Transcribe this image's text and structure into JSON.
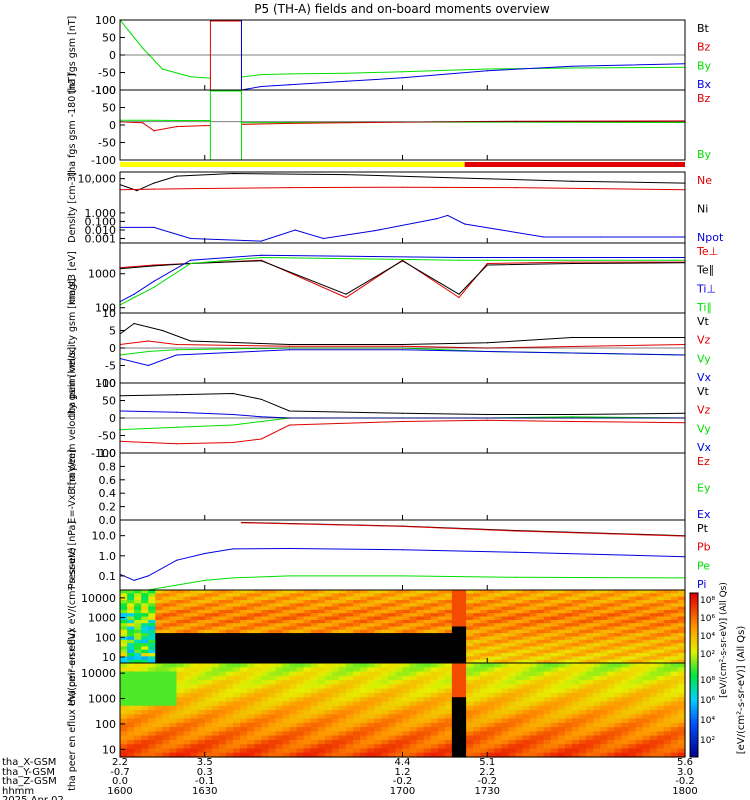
{
  "title": "P5 (TH-A) fields and on-board moments overview",
  "colors": {
    "black": "#000000",
    "red": "#e00000",
    "green": "#00e000",
    "blue": "#0000e0",
    "yellow": "#ffff00",
    "barred": "#e00000"
  },
  "footer": {
    "labels": [
      "tha_X-GSM",
      "tha_Y-GSM",
      "tha_Z-GSM",
      "hhmm",
      "2025 Apr 02"
    ],
    "ticks": [
      {
        "x": "2.2",
        "y": "-0.7",
        "z": "0.0",
        "hhmm": "1600"
      },
      {
        "x": "3.5",
        "y": "0.3",
        "z": "-0.1",
        "hhmm": "1630"
      },
      {
        "x": "4.4",
        "y": "1.2",
        "z": "-0.2",
        "hhmm": "1700"
      },
      {
        "x": "5.1",
        "y": "2.2",
        "z": "-0.2",
        "hhmm": "1730"
      },
      {
        "x": "5.6",
        "y": "3.0",
        "z": "-0.2",
        "hhmm": "1800"
      }
    ]
  },
  "colorbar": {
    "label": "[eV/(cm²-s-sr-eV)] (All Qs)",
    "label_echo": "[eV/(cm²-s-sr-eV)] (All Qs)",
    "ticks_top": [
      "10⁸",
      "10⁶",
      "10⁴",
      "10²"
    ],
    "ticks_bottom": [
      "10⁸",
      "10⁶",
      "10⁴",
      "10²"
    ]
  },
  "chart_data": [
    {
      "type": "line",
      "panel": "fgs",
      "ylabel": "tha fgs gsm [nT]",
      "ylim": [
        -100,
        100
      ],
      "ticks": [
        "100",
        "50",
        "0",
        "-50",
        "-100"
      ],
      "legend": [
        {
          "name": "Bt",
          "color": "black"
        },
        {
          "name": "Bz",
          "color": "red"
        },
        {
          "name": "By",
          "color": "green"
        },
        {
          "name": "Bx",
          "color": "blue"
        }
      ],
      "series": [
        {
          "name": "By",
          "color": "green",
          "x": [
            1600,
            1603,
            1608,
            1615,
            1625,
            1630,
            1632
          ],
          "y": [
            100,
            70,
            20,
            -40,
            -62,
            -65,
            -66
          ]
        },
        {
          "name": "By",
          "color": "green",
          "x": [
            1643,
            1650,
            1660,
            1680,
            1700,
            1730,
            1760,
            1800
          ],
          "y": [
            -63,
            -56,
            -54,
            -52,
            -48,
            -40,
            -37,
            -35
          ]
        },
        {
          "name": "Bx",
          "color": "blue",
          "x": [
            1643,
            1650,
            1660,
            1680,
            1700,
            1730,
            1760,
            1800
          ],
          "y": [
            -100,
            -90,
            -85,
            -75,
            -65,
            -45,
            -32,
            -25
          ]
        }
      ]
    },
    {
      "type": "line",
      "panel": "fgs-smooth",
      "ylabel": "tha fgs gsm -180 [nT]",
      "ylim": [
        -120,
        100
      ],
      "ticks": [
        "100",
        "50",
        "0",
        "-50",
        "-100"
      ],
      "legend": [
        {
          "name": "Bz",
          "color": "red"
        },
        {
          "name": "By",
          "color": "green"
        }
      ],
      "series": [
        {
          "name": "By",
          "color": "green",
          "x": [
            1600,
            1610,
            1620,
            1630,
            1632
          ],
          "y": [
            5,
            5,
            4,
            4,
            4
          ]
        },
        {
          "name": "By",
          "color": "green",
          "x": [
            1643,
            1660,
            1700,
            1740,
            1800
          ],
          "y": [
            -3,
            -2,
            -1,
            -1,
            -2
          ]
        },
        {
          "name": "Bz",
          "color": "red",
          "x": [
            1600,
            1608,
            1612,
            1620,
            1630,
            1632
          ],
          "y": [
            0,
            -3,
            -28,
            -15,
            -12,
            -12
          ]
        },
        {
          "name": "Bz",
          "color": "red",
          "x": [
            1643,
            1660,
            1700,
            1740,
            1800
          ],
          "y": [
            -8,
            -5,
            -1,
            2,
            3
          ]
        }
      ]
    },
    {
      "type": "line",
      "panel": "density",
      "ylabel": "Density [cm-3]",
      "ylim": [
        0.0003,
        60000
      ],
      "scale": "log",
      "ticks": [
        "10,000",
        "1.000",
        "0.100",
        "0.010",
        "0.001"
      ],
      "legend": [
        {
          "name": "Ne",
          "color": "red"
        },
        {
          "name": "Ni",
          "color": "black"
        },
        {
          "name": "Npot",
          "color": "blue"
        }
      ],
      "series": [
        {
          "name": "Ni",
          "color": "black",
          "x": [
            1600,
            1606,
            1612,
            1620,
            1640,
            1680,
            1720,
            1760,
            1800
          ],
          "y": [
            2000,
            400,
            3000,
            20000,
            40000,
            30000,
            12000,
            5000,
            3000
          ]
        },
        {
          "name": "Ne",
          "color": "red",
          "x": [
            1600,
            1612,
            1630,
            1660,
            1700,
            1740,
            1800
          ],
          "y": [
            500,
            600,
            700,
            900,
            1000,
            900,
            500
          ]
        },
        {
          "name": "Npot",
          "color": "blue",
          "x": [
            1600,
            1612,
            1625,
            1650,
            1662,
            1672,
            1690,
            1712,
            1716,
            1722,
            1735,
            1750,
            1770,
            1800
          ],
          "y": [
            0.02,
            0.02,
            0.001,
            0.0005,
            0.01,
            0.001,
            0.008,
            0.2,
            0.5,
            0.05,
            0.01,
            0.0015,
            0.0015,
            0.0015
          ]
        }
      ]
    },
    {
      "type": "line",
      "panel": "temperature",
      "ylabel": "magt3 [eV]",
      "ylim": [
        70,
        8000
      ],
      "scale": "log",
      "ticks": [
        "1000",
        "100"
      ],
      "legend": [
        {
          "name": "Te⊥",
          "color": "red"
        },
        {
          "name": "Te∥",
          "color": "black"
        },
        {
          "name": "Ti⊥",
          "color": "blue"
        },
        {
          "name": "Ti∥",
          "color": "green"
        }
      ],
      "series": [
        {
          "name": "Te⊥",
          "color": "red",
          "x": [
            1600,
            1612,
            1625,
            1650,
            1680,
            1700,
            1720,
            1730,
            1760,
            1800
          ],
          "y": [
            1500,
            1800,
            2000,
            2500,
            200,
            2500,
            200,
            2000,
            2200,
            2200
          ]
        },
        {
          "name": "Te∥",
          "color": "black",
          "x": [
            1600,
            1612,
            1625,
            1650,
            1680,
            1700,
            1720,
            1730,
            1760,
            1800
          ],
          "y": [
            1400,
            1700,
            2000,
            2400,
            250,
            2400,
            250,
            1800,
            2000,
            2100
          ]
        },
        {
          "name": "Ti⊥",
          "color": "blue",
          "x": [
            1600,
            1605,
            1612,
            1625,
            1650,
            1720,
            1730,
            1800
          ],
          "y": [
            150,
            250,
            600,
            2500,
            3500,
            3000,
            3000,
            3000
          ]
        },
        {
          "name": "Ti∥",
          "color": "green",
          "x": [
            1600,
            1605,
            1612,
            1625,
            1650,
            1720,
            1730,
            1800
          ],
          "y": [
            120,
            200,
            400,
            2000,
            3000,
            2500,
            2500,
            2500
          ]
        }
      ]
    },
    {
      "type": "line",
      "panel": "ion-velocity",
      "ylabel": "tha peim velocity gsm [km/s]",
      "ylim": [
        -10,
        10
      ],
      "ticks": [
        "10",
        "5",
        "0",
        "-5",
        "-10"
      ],
      "legend": [
        {
          "name": "Vt",
          "color": "black"
        },
        {
          "name": "Vz",
          "color": "red"
        },
        {
          "name": "Vy",
          "color": "green"
        },
        {
          "name": "Vx",
          "color": "blue"
        }
      ],
      "series": [
        {
          "name": "Vt",
          "color": "black",
          "x": [
            1600,
            1605,
            1615,
            1625,
            1660,
            1700,
            1730,
            1760,
            1800
          ],
          "y": [
            4,
            7,
            5,
            2,
            1,
            1,
            1.5,
            3,
            3
          ]
        },
        {
          "name": "Vz",
          "color": "red",
          "x": [
            1600,
            1610,
            1620,
            1660,
            1700,
            1730,
            1800
          ],
          "y": [
            1,
            2,
            1,
            0.5,
            0.5,
            0,
            1
          ]
        },
        {
          "name": "Vy",
          "color": "green",
          "x": [
            1600,
            1610,
            1620,
            1660,
            1700,
            1730,
            1800
          ],
          "y": [
            -2,
            -1,
            -0.5,
            0,
            0,
            -1,
            -2
          ]
        },
        {
          "name": "Vx",
          "color": "blue",
          "x": [
            1600,
            1610,
            1620,
            1660,
            1700,
            1730,
            1800
          ],
          "y": [
            -3,
            -5,
            -2,
            -0.5,
            -0.5,
            -1,
            -2
          ]
        }
      ]
    },
    {
      "type": "line",
      "panel": "electron-velocity",
      "ylabel": "tha peem velocity gsm [km/s]",
      "ylim": [
        -150,
        150
      ],
      "ticks": [
        "100",
        "50",
        "0",
        "-50",
        "-100"
      ],
      "legend": [
        {
          "name": "Vt",
          "color": "black"
        },
        {
          "name": "Vz",
          "color": "red"
        },
        {
          "name": "Vy",
          "color": "green"
        },
        {
          "name": "Vx",
          "color": "blue"
        }
      ],
      "series": [
        {
          "name": "Vt",
          "color": "black",
          "x": [
            1600,
            1620,
            1640,
            1650,
            1660,
            1700,
            1730,
            1760,
            1800
          ],
          "y": [
            95,
            100,
            105,
            80,
            30,
            20,
            15,
            15,
            20
          ]
        },
        {
          "name": "Vz",
          "color": "red",
          "x": [
            1600,
            1620,
            1640,
            1650,
            1660,
            1700,
            1730,
            1760,
            1800
          ],
          "y": [
            -100,
            -110,
            -105,
            -90,
            -30,
            -15,
            -10,
            -15,
            -20
          ]
        },
        {
          "name": "Vy",
          "color": "green",
          "x": [
            1600,
            1620,
            1640,
            1650,
            1660,
            1700,
            1730,
            1760,
            1800
          ],
          "y": [
            -50,
            -40,
            -30,
            -15,
            0,
            0,
            0,
            5,
            0
          ]
        },
        {
          "name": "Vx",
          "color": "blue",
          "x": [
            1600,
            1620,
            1640,
            1650,
            1660,
            1700,
            1730,
            1760,
            1800
          ],
          "y": [
            30,
            25,
            15,
            5,
            0,
            0,
            0,
            0,
            0
          ]
        }
      ]
    },
    {
      "type": "line",
      "panel": "efield",
      "ylabel": "E=-VxB [mV/m]",
      "ylim": [
        0,
        1
      ],
      "ticks": [
        "1.0",
        "0.8",
        "0.6",
        "0.4",
        "0.2",
        "0.0"
      ],
      "legend": [
        {
          "name": "Ez",
          "color": "red"
        },
        {
          "name": "Ey",
          "color": "green"
        },
        {
          "name": "Ex",
          "color": "blue"
        }
      ],
      "series": []
    },
    {
      "type": "line",
      "panel": "pressure",
      "ylabel": "Pressure [nPa]",
      "ylim": [
        0.02,
        60
      ],
      "scale": "log",
      "ticks": [
        "10.0",
        "1.0",
        "0.1"
      ],
      "legend": [
        {
          "name": "Pt",
          "color": "black"
        },
        {
          "name": "Pb",
          "color": "red"
        },
        {
          "name": "Pe",
          "color": "green"
        },
        {
          "name": "Pi",
          "color": "blue"
        }
      ],
      "series": [
        {
          "name": "Pi",
          "color": "blue",
          "x": [
            1600,
            1605,
            1610,
            1620,
            1630,
            1640,
            1660,
            1700,
            1740,
            1800
          ],
          "y": [
            0.12,
            0.06,
            0.1,
            0.6,
            1.3,
            2.2,
            2.3,
            2.0,
            1.5,
            0.9
          ]
        },
        {
          "name": "Pe",
          "color": "green",
          "x": [
            1600,
            1610,
            1620,
            1630,
            1640,
            1660,
            1700,
            1740,
            1800
          ],
          "y": [
            0.02,
            0.02,
            0.035,
            0.06,
            0.08,
            0.1,
            0.1,
            0.085,
            0.08
          ]
        },
        {
          "name": "Pt",
          "color": "black",
          "x": [
            1643,
            1660,
            1700,
            1740,
            1800
          ],
          "y": [
            45,
            40,
            30,
            18,
            10
          ]
        },
        {
          "name": "Pb",
          "color": "red",
          "x": [
            1643,
            1660,
            1700,
            1740,
            1800
          ],
          "y": [
            44,
            39,
            29,
            17,
            9.5
          ]
        }
      ]
    },
    {
      "type": "heatmap",
      "panel": "ion-spectrogram",
      "ylabel": "tha peir en eflux eV/(cm²-s-sr-eV)",
      "ylim": [
        5,
        25000
      ],
      "scale": "log",
      "ticks": [
        "10000",
        "1000",
        "100",
        "10"
      ]
    },
    {
      "type": "heatmap",
      "panel": "electron-spectrogram",
      "ylabel": "tha peer en eflux eV/(cm²-s-sr-eV)",
      "ylim": [
        5,
        25000
      ],
      "scale": "log",
      "ticks": [
        "10000",
        "1000",
        "100",
        "10"
      ]
    }
  ]
}
